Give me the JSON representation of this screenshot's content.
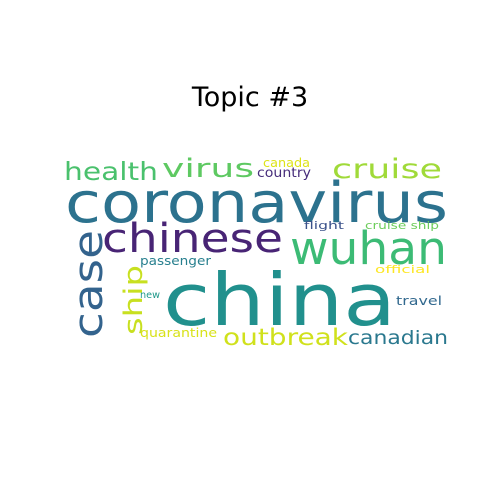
{
  "figure": {
    "title": "Topic #3"
  },
  "words": [
    {
      "text": "china",
      "color": "#21908d"
    },
    {
      "text": "coronavirus",
      "color": "#2c728e"
    },
    {
      "text": "wuhan",
      "color": "#3cbb75"
    },
    {
      "text": "chinese",
      "color": "#482475"
    },
    {
      "text": "case",
      "color": "#33638d"
    },
    {
      "text": "health",
      "color": "#4ac16d"
    },
    {
      "text": "virus",
      "color": "#5ec962"
    },
    {
      "text": "cruise",
      "color": "#a0da39"
    },
    {
      "text": "ship",
      "color": "#c8e020"
    },
    {
      "text": "outbreak",
      "color": "#d0e11c"
    },
    {
      "text": "canadian",
      "color": "#2a788e"
    },
    {
      "text": "canada",
      "color": "#dde318"
    },
    {
      "text": "country",
      "color": "#472d7b"
    },
    {
      "text": "flight",
      "color": "#3b528b"
    },
    {
      "text": "cruise ship",
      "color": "#6ccd5a"
    },
    {
      "text": "passenger",
      "color": "#277f8e"
    },
    {
      "text": "official",
      "color": "#fde725"
    },
    {
      "text": "new",
      "color": "#1f998a"
    },
    {
      "text": "travel",
      "color": "#31688e"
    },
    {
      "text": "quarantine",
      "color": "#d8e219"
    }
  ]
}
